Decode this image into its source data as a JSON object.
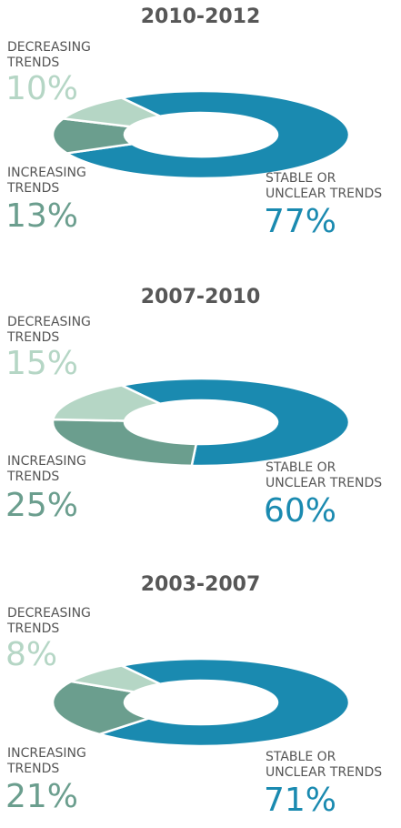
{
  "colors": {
    "stable": "#1a8ab0",
    "increasing": "#6b9e8e",
    "decreasing": "#b5d6c5",
    "title": "#575757",
    "label": "#555555"
  },
  "labels": {
    "decreasing": [
      "DECREASING",
      "TRENDS"
    ],
    "increasing": [
      "INCREASING",
      "TRENDS"
    ],
    "stable": [
      "STABLE OR",
      "UNCLEAR TRENDS"
    ]
  },
  "chart_data": [
    {
      "type": "pie",
      "title": "2010-2012",
      "categories": [
        "STABLE OR UNCLEAR TRENDS",
        "INCREASING TRENDS",
        "DECREASING TRENDS"
      ],
      "values": [
        77,
        13,
        10
      ],
      "value_labels": [
        "77%",
        "13%",
        "10%"
      ]
    },
    {
      "type": "pie",
      "title": "2007-2010",
      "categories": [
        "STABLE OR UNCLEAR TRENDS",
        "INCREASING TRENDS",
        "DECREASING TRENDS"
      ],
      "values": [
        60,
        25,
        15
      ],
      "value_labels": [
        "60%",
        "25%",
        "15%"
      ]
    },
    {
      "type": "pie",
      "title": "2003-2007",
      "categories": [
        "STABLE OR UNCLEAR TRENDS",
        "INCREASING TRENDS",
        "DECREASING TRENDS"
      ],
      "values": [
        71,
        21,
        8
      ],
      "value_labels": [
        "71%",
        "21%",
        "8%"
      ]
    }
  ]
}
